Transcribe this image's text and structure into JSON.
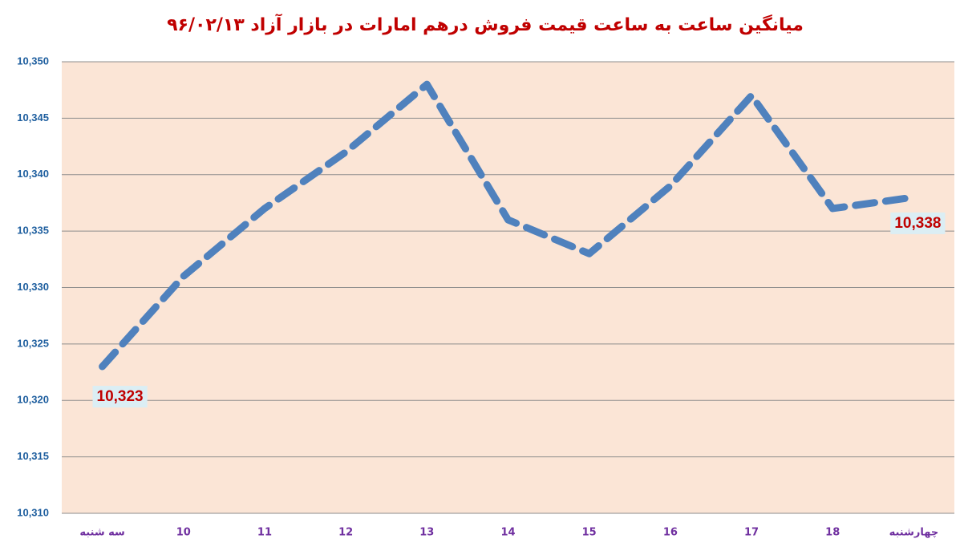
{
  "chart_data": {
    "type": "line",
    "title": "میانگین ساعت به ساعت قیمت فروش درهم امارات در بازار آزاد ۹۶/۰۲/۱۳",
    "categories": [
      "سه شنبه",
      "10",
      "11",
      "12",
      "13",
      "14",
      "15",
      "16",
      "17",
      "18",
      "چهارشنبه"
    ],
    "values": [
      10323,
      10331,
      10337,
      10342,
      10348,
      10336,
      10333,
      10339,
      10347,
      10337,
      10338
    ],
    "value_labels": [
      "10,323",
      null,
      null,
      null,
      null,
      null,
      null,
      null,
      null,
      null,
      "10,338"
    ],
    "color": "#4f81bd",
    "ylim": [
      10310,
      10350
    ],
    "yticks": [
      {
        "value": 10310,
        "label": "10,310"
      },
      {
        "value": 10315,
        "label": "10,315"
      },
      {
        "value": 10320,
        "label": "10,320"
      },
      {
        "value": 10325,
        "label": "10,325"
      },
      {
        "value": 10330,
        "label": "10,330"
      },
      {
        "value": 10335,
        "label": "10,335"
      },
      {
        "value": 10340,
        "label": "10,340"
      },
      {
        "value": 10345,
        "label": "10,345"
      },
      {
        "value": 10350,
        "label": "10,350"
      }
    ],
    "grid": true
  }
}
